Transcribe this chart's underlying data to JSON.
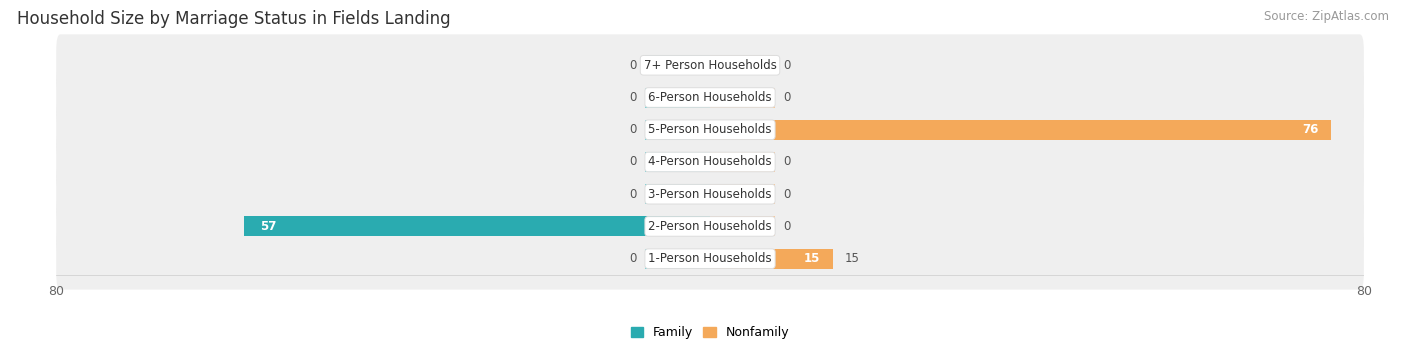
{
  "title": "Household Size by Marriage Status in Fields Landing",
  "source": "Source: ZipAtlas.com",
  "categories": [
    "7+ Person Households",
    "6-Person Households",
    "5-Person Households",
    "4-Person Households",
    "3-Person Households",
    "2-Person Households",
    "1-Person Households"
  ],
  "family_values": [
    0,
    0,
    0,
    0,
    0,
    57,
    0
  ],
  "nonfamily_values": [
    0,
    0,
    76,
    0,
    0,
    0,
    15
  ],
  "family_color": "#2AABB0",
  "nonfamily_color": "#F4A95A",
  "family_stub_color": "#7DD0D4",
  "nonfamily_stub_color": "#F9C99A",
  "row_bg_color": "#EFEFEF",
  "row_bg_color_alt": "#E8E8E8",
  "xlim": [
    -80,
    80
  ],
  "stub_size": 8,
  "legend_family": "Family",
  "legend_nonfamily": "Nonfamily",
  "title_fontsize": 12,
  "source_fontsize": 8.5,
  "label_fontsize": 8.5,
  "value_fontsize": 8.5,
  "bar_height": 0.62
}
